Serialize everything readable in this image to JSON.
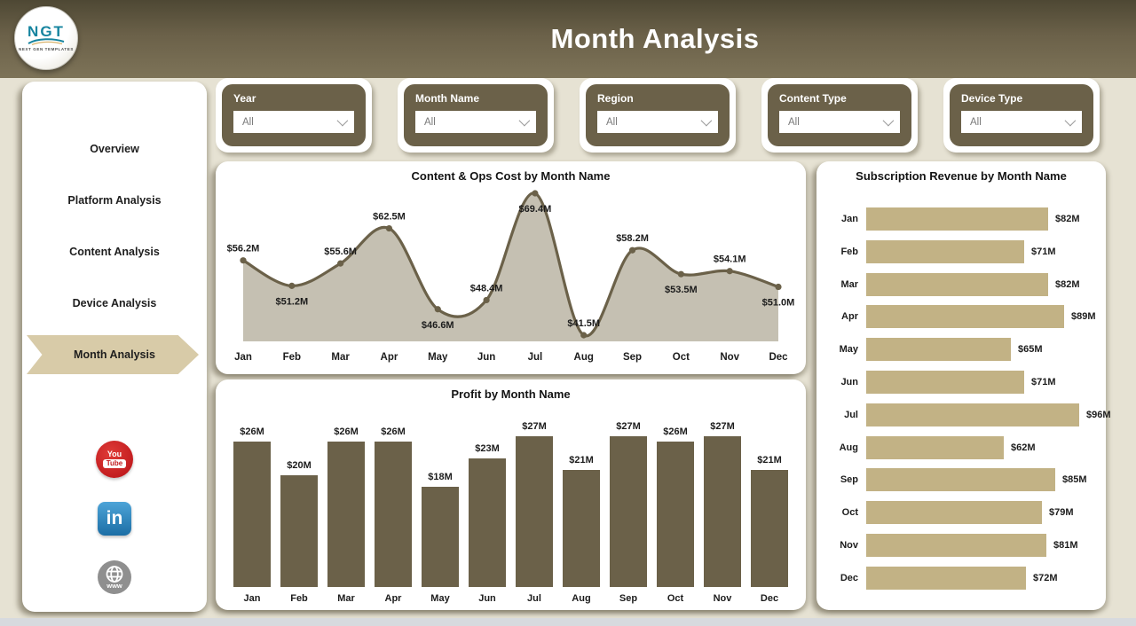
{
  "header": {
    "title": "Month Analysis",
    "logo_text": "NGT",
    "logo_subtext": "NEXT GEN TEMPLATES"
  },
  "sidebar": {
    "items": [
      {
        "label": "Overview",
        "active": false
      },
      {
        "label": "Platform Analysis",
        "active": false
      },
      {
        "label": "Content Analysis",
        "active": false
      },
      {
        "label": "Device Analysis",
        "active": false
      },
      {
        "label": "Month Analysis",
        "active": true
      }
    ],
    "social": [
      "youtube-icon",
      "linkedin-icon",
      "globe-icon"
    ],
    "linkedin_text": "in",
    "youtube_text_top": "You",
    "youtube_text_bottom": "Tube",
    "globe_text": "www"
  },
  "filters": [
    {
      "label": "Year",
      "value": "All"
    },
    {
      "label": "Month Name",
      "value": "All"
    },
    {
      "label": "Region",
      "value": "All"
    },
    {
      "label": "Content Type",
      "value": "All"
    },
    {
      "label": "Device Type",
      "value": "All"
    }
  ],
  "colors": {
    "accent_dark": "#6b6149",
    "accent_tan": "#c2b285",
    "nav_active_tan": "#d8cba8",
    "area_fill": "#c5c0b2",
    "youtube_red": "#c11b1e",
    "linkedin_blue": "#2977b5",
    "globe_gray": "#8f8f8f"
  },
  "chart_data": [
    {
      "type": "area",
      "title": "Content & Ops Cost by Month Name",
      "categories": [
        "Jan",
        "Feb",
        "Mar",
        "Apr",
        "May",
        "Jun",
        "Jul",
        "Aug",
        "Sep",
        "Oct",
        "Nov",
        "Dec"
      ],
      "values": [
        56.2,
        51.2,
        55.6,
        62.5,
        46.6,
        48.4,
        69.4,
        41.5,
        58.2,
        53.5,
        54.1,
        51.0
      ],
      "labels": [
        "$56.2M",
        "$51.2M",
        "$55.6M",
        "$62.5M",
        "$46.6M",
        "$48.4M",
        "$69.4M",
        "$41.5M",
        "$58.2M",
        "$53.5M",
        "$54.1M",
        "$51.0M"
      ],
      "label_side": [
        "above",
        "below",
        "above",
        "above",
        "below",
        "above",
        "below",
        "above",
        "above",
        "below",
        "above",
        "below"
      ],
      "xlabel": "",
      "ylabel": "",
      "ylim": [
        40,
        72
      ],
      "grid": false,
      "legend": "none",
      "smooth": true,
      "markers": true
    },
    {
      "type": "bar",
      "title": "Profit by Month Name",
      "categories": [
        "Jan",
        "Feb",
        "Mar",
        "Apr",
        "May",
        "Jun",
        "Jul",
        "Aug",
        "Sep",
        "Oct",
        "Nov",
        "Dec"
      ],
      "values": [
        26,
        20,
        26,
        26,
        18,
        23,
        27,
        21,
        27,
        26,
        27,
        21
      ],
      "labels": [
        "$26M",
        "$20M",
        "$26M",
        "$26M",
        "$18M",
        "$23M",
        "$27M",
        "$21M",
        "$27M",
        "$26M",
        "$27M",
        "$21M"
      ],
      "xlabel": "",
      "ylabel": "",
      "ylim": [
        0,
        28
      ],
      "grid": false,
      "legend": "none"
    },
    {
      "type": "bar-horizontal",
      "title": "Subscription Revenue by Month Name",
      "categories": [
        "Jan",
        "Feb",
        "Mar",
        "Apr",
        "May",
        "Jun",
        "Jul",
        "Aug",
        "Sep",
        "Oct",
        "Nov",
        "Dec"
      ],
      "values": [
        82,
        71,
        82,
        89,
        65,
        71,
        96,
        62,
        85,
        79,
        81,
        72
      ],
      "labels": [
        "$82M",
        "$71M",
        "$82M",
        "$89M",
        "$65M",
        "$71M",
        "$96M",
        "$62M",
        "$85M",
        "$79M",
        "$81M",
        "$72M"
      ],
      "xlabel": "",
      "ylabel": "",
      "xlim": [
        0,
        100
      ],
      "grid": false,
      "legend": "none"
    }
  ]
}
